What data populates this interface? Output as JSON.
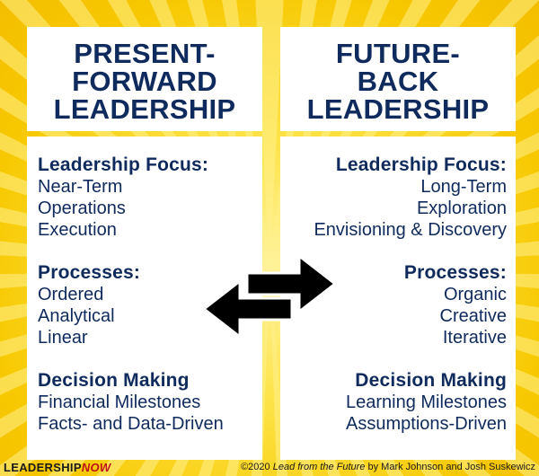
{
  "left": {
    "title": [
      "PRESENT-",
      "FORWARD",
      "LEADERSHIP"
    ],
    "sections": [
      {
        "heading": "Leadership Focus:",
        "items": [
          "Near-Term",
          "Operations",
          "Execution"
        ]
      },
      {
        "heading": "Processes:",
        "items": [
          "Ordered",
          "Analytical",
          "Linear"
        ]
      },
      {
        "heading": "Decision Making",
        "items": [
          "Financial Milestones",
          "Facts- and Data-Driven"
        ]
      }
    ]
  },
  "right": {
    "title": [
      "FUTURE-",
      "BACK",
      "LEADERSHIP"
    ],
    "sections": [
      {
        "heading": "Leadership Focus:",
        "items": [
          "Long-Term",
          "Exploration",
          "Envisioning & Discovery"
        ]
      },
      {
        "heading": "Processes:",
        "items": [
          "Organic",
          "Creative",
          "Iterative"
        ]
      },
      {
        "heading": "Decision Making",
        "items": [
          "Learning Milestones",
          "Assumptions-Driven"
        ]
      }
    ]
  },
  "footer": {
    "logo_main": "LEADERSHIP",
    "logo_accent": "NOW",
    "credit_prefix": "©2020 ",
    "credit_book": "Lead from the Future",
    "credit_suffix": " by Mark Johnson and Josh Suskewicz"
  },
  "colors": {
    "navy": "#0f2a5c",
    "accent_red": "#c0101a",
    "background": "#f7c800"
  },
  "icons": {
    "arrows": "double-arrow-icon"
  }
}
